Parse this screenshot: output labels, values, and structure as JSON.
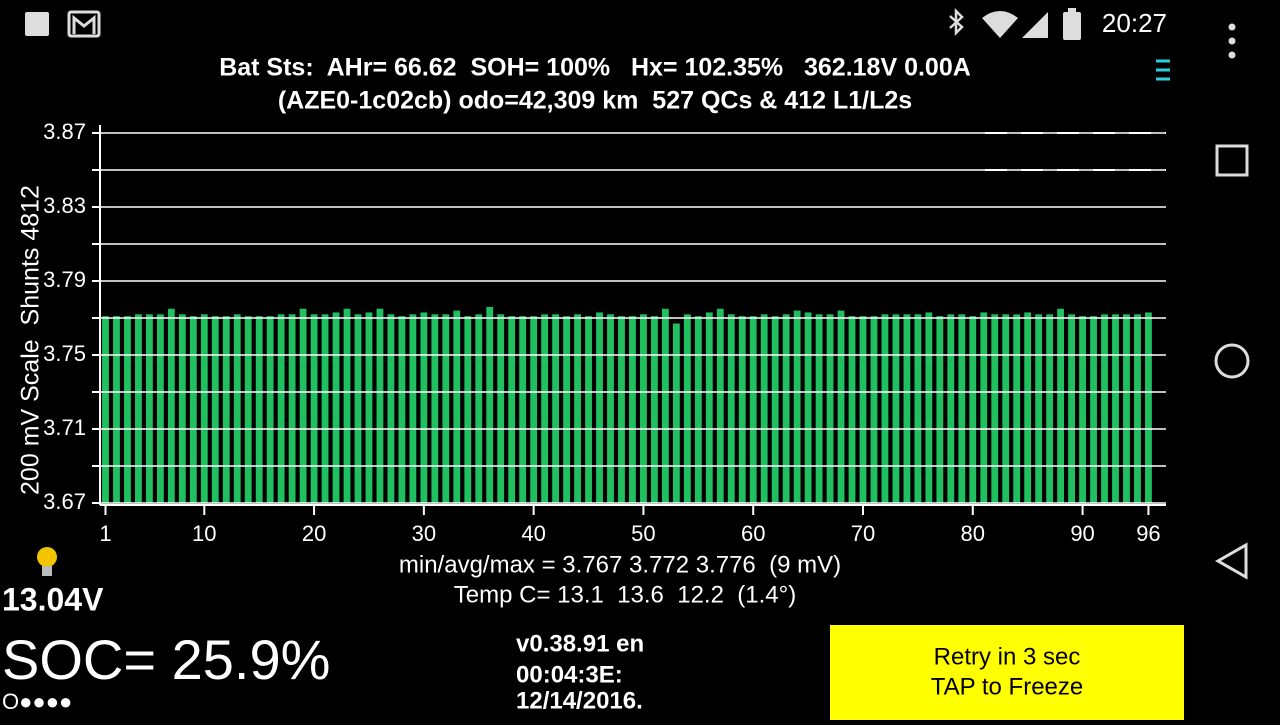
{
  "status_bar": {
    "time": "20:27"
  },
  "header": {
    "line1": "Bat Sts:  AHr= 66.62  SOH= 100%   Hx= 102.35%   362.18V 0.00A",
    "line2": "(AZE0-1c02cb) odo=42,309 km  527 QCs & 412 L1/L2s"
  },
  "chart_data": {
    "type": "bar",
    "ylabel": "200 mV Scale  Shunts 4812",
    "x": [
      1,
      2,
      3,
      4,
      5,
      6,
      7,
      8,
      9,
      10,
      11,
      12,
      13,
      14,
      15,
      16,
      17,
      18,
      19,
      20,
      21,
      22,
      23,
      24,
      25,
      26,
      27,
      28,
      29,
      30,
      31,
      32,
      33,
      34,
      35,
      36,
      37,
      38,
      39,
      40,
      41,
      42,
      43,
      44,
      45,
      46,
      47,
      48,
      49,
      50,
      51,
      52,
      53,
      54,
      55,
      56,
      57,
      58,
      59,
      60,
      61,
      62,
      63,
      64,
      65,
      66,
      67,
      68,
      69,
      70,
      71,
      72,
      73,
      74,
      75,
      76,
      77,
      78,
      79,
      80,
      81,
      82,
      83,
      84,
      85,
      86,
      87,
      88,
      89,
      90,
      91,
      92,
      93,
      94,
      95,
      96
    ],
    "values": [
      3.771,
      3.771,
      3.771,
      3.772,
      3.772,
      3.772,
      3.775,
      3.772,
      3.771,
      3.772,
      3.771,
      3.771,
      3.772,
      3.771,
      3.771,
      3.771,
      3.772,
      3.772,
      3.775,
      3.772,
      3.772,
      3.773,
      3.775,
      3.772,
      3.773,
      3.775,
      3.772,
      3.771,
      3.772,
      3.773,
      3.772,
      3.772,
      3.774,
      3.771,
      3.772,
      3.776,
      3.772,
      3.771,
      3.771,
      3.771,
      3.772,
      3.772,
      3.771,
      3.772,
      3.771,
      3.773,
      3.772,
      3.771,
      3.771,
      3.772,
      3.771,
      3.775,
      3.767,
      3.772,
      3.771,
      3.773,
      3.775,
      3.772,
      3.771,
      3.771,
      3.772,
      3.771,
      3.772,
      3.774,
      3.773,
      3.772,
      3.772,
      3.774,
      3.771,
      3.771,
      3.771,
      3.772,
      3.772,
      3.772,
      3.772,
      3.773,
      3.771,
      3.772,
      3.772,
      3.771,
      3.773,
      3.772,
      3.772,
      3.772,
      3.773,
      3.772,
      3.772,
      3.775,
      3.772,
      3.771,
      3.771,
      3.772,
      3.772,
      3.772,
      3.772,
      3.773
    ],
    "color": "#20c060",
    "xlim": [
      0.5,
      97.6
    ],
    "xticks": [
      1,
      10,
      20,
      30,
      40,
      50,
      60,
      70,
      80,
      90,
      96
    ],
    "ylim": [
      3.67,
      3.87
    ],
    "yticks": [
      3.67,
      3.71,
      3.75,
      3.79,
      3.83,
      3.87
    ],
    "minor_yticks": [
      3.69,
      3.73,
      3.77,
      3.81,
      3.85
    ],
    "grid": true
  },
  "stats": {
    "line1": "min/avg/max = 3.767 3.772 3.776  (9 mV)",
    "line2": "Temp C= 13.1  13.6  12.2  (1.4°)"
  },
  "aux_voltage": "13.04V",
  "soc": "SOC= 25.9%",
  "indicator": "O●●●●",
  "version": {
    "line1": "v0.38.91 en",
    "line2": "00:04:3E:",
    "line3": "12/14/2016."
  },
  "button": {
    "line1": "Retry in 3 sec",
    "line2": "TAP to Freeze"
  }
}
